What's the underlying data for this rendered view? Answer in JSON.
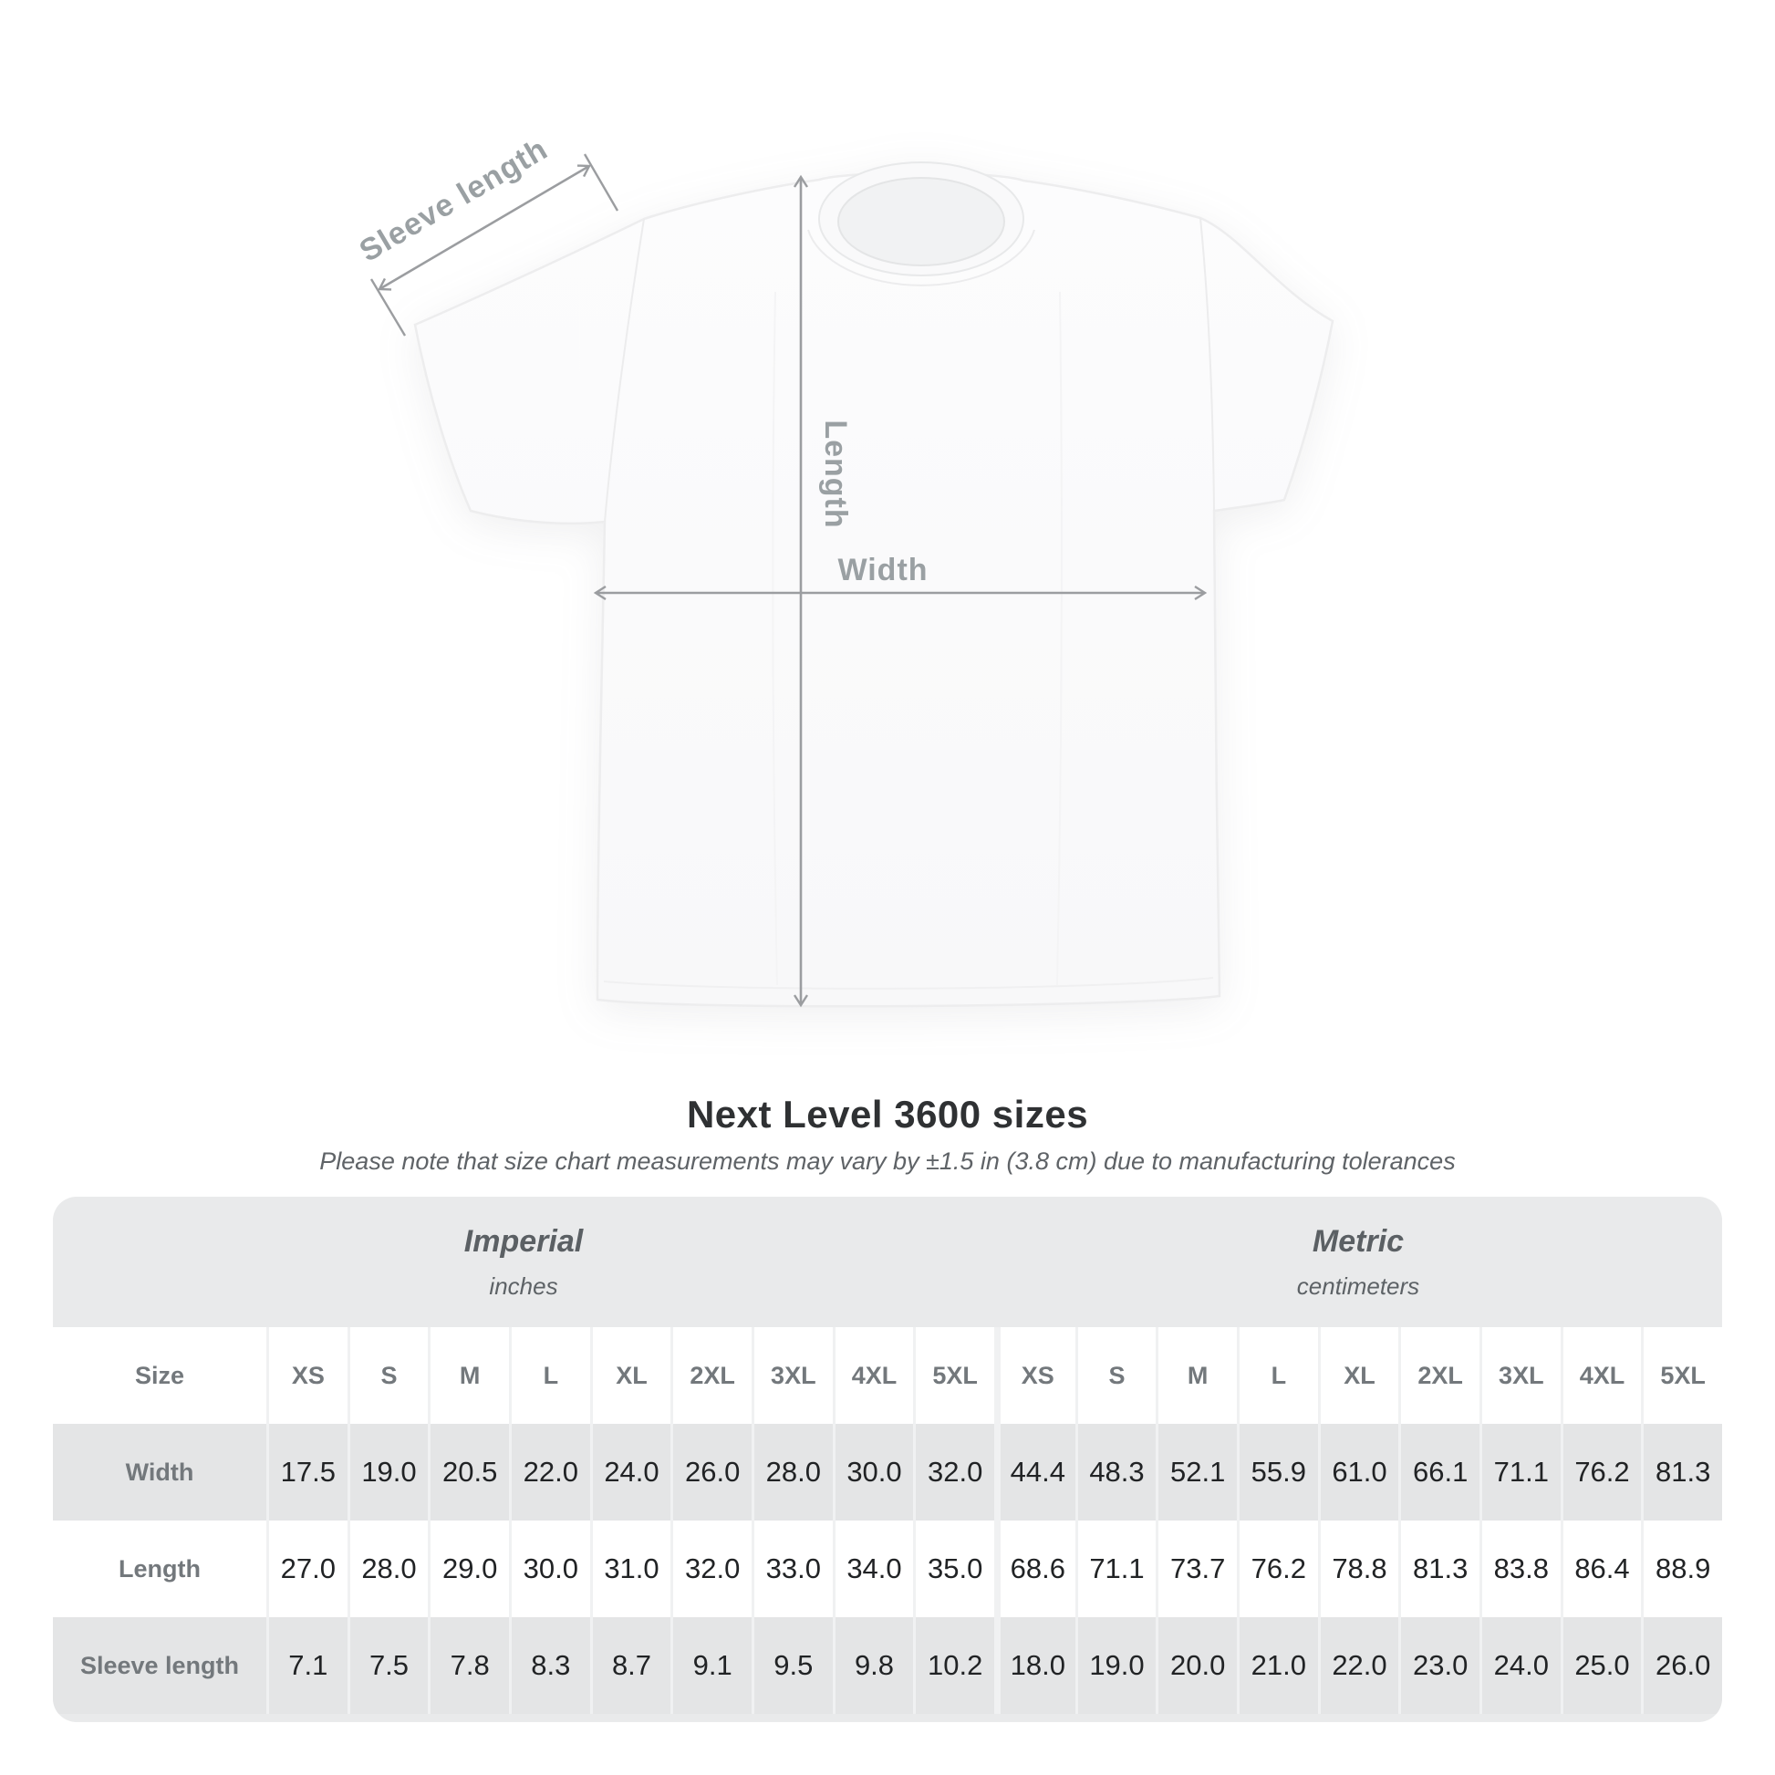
{
  "diagram": {
    "sleeve_label": "Sleeve length",
    "length_label": "Length",
    "width_label": "Width",
    "annotation_color": "#9aa0a3",
    "line_color": "#9b9da0",
    "shirt_fill": "#fbfbfc"
  },
  "title": "Next Level 3600 sizes",
  "subtitle": "Please note that size chart measurements may vary by ±1.5 in (3.8 cm) due to manufacturing tolerances",
  "size_table": {
    "groups": [
      {
        "label": "Imperial",
        "sublabel": "inches"
      },
      {
        "label": "Metric",
        "sublabel": "centimeters"
      }
    ],
    "corner_label": "Size",
    "sizes": [
      "XS",
      "S",
      "M",
      "L",
      "XL",
      "2XL",
      "3XL",
      "4XL",
      "5XL"
    ],
    "rows": [
      {
        "label": "Width",
        "imperial": [
          "17.5",
          "19.0",
          "20.5",
          "22.0",
          "24.0",
          "26.0",
          "28.0",
          "30.0",
          "32.0"
        ],
        "metric": [
          "44.4",
          "48.3",
          "52.1",
          "55.9",
          "61.0",
          "66.1",
          "71.1",
          "76.2",
          "81.3"
        ]
      },
      {
        "label": "Length",
        "imperial": [
          "27.0",
          "28.0",
          "29.0",
          "30.0",
          "31.0",
          "32.0",
          "33.0",
          "34.0",
          "35.0"
        ],
        "metric": [
          "68.6",
          "71.1",
          "73.7",
          "76.2",
          "78.8",
          "81.3",
          "83.8",
          "86.4",
          "88.9"
        ]
      },
      {
        "label": "Sleeve length",
        "imperial": [
          "7.1",
          "7.5",
          "7.8",
          "8.3",
          "8.7",
          "9.1",
          "9.5",
          "9.8",
          "10.2"
        ],
        "metric": [
          "18.0",
          "19.0",
          "20.0",
          "21.0",
          "22.0",
          "23.0",
          "24.0",
          "25.0",
          "26.0"
        ]
      }
    ],
    "colors": {
      "container_bg": "#e9eaeb",
      "band_bg": "#e4e5e6",
      "white_bg": "#ffffff",
      "separator": "#f0f1f2",
      "header_text": "#73787c",
      "value_text": "#212325"
    }
  }
}
